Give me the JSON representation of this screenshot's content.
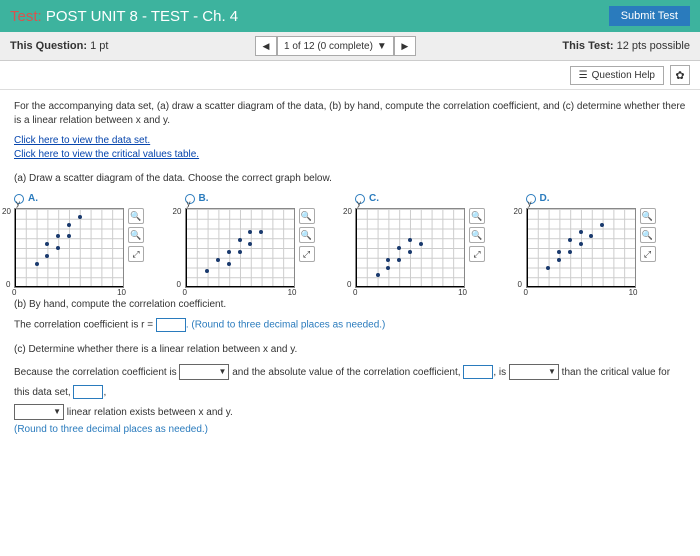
{
  "header": {
    "prefix": "Test:",
    "title": "POST UNIT 8 - TEST - Ch. 4",
    "submit": "Submit Test"
  },
  "bar": {
    "thisQuestion": "This Question:",
    "pts": "1 pt",
    "nav": "1 of 12 (0 complete)",
    "thisTest": "This Test:",
    "testPts": "12 pts possible"
  },
  "toolbar": {
    "help": "Question Help"
  },
  "q": {
    "intro": "For the accompanying data set, (a) draw a scatter diagram of the data, (b) by hand, compute the correlation coefficient, and (c) determine whether there is a linear relation between x and y.",
    "link1": "Click here to view the data set.",
    "link2": "Click here to view the critical values table.",
    "a": "(a) Draw a scatter diagram of the data. Choose the correct graph below.",
    "b": "(b) By hand, compute the correlation coefficient.",
    "bline": "The correlation coefficient is r = ",
    "bround": ". (Round to three decimal places as needed.)",
    "c": "(c) Determine whether there is a linear relation between x and y.",
    "cline1": "Because the correlation coefficient is ",
    "cline2": " and the absolute value of the correlation coefficient, ",
    "cline3": ", is ",
    "cline4": " than the critical value for this data set, ",
    "cline5": ",",
    "cline6": " linear relation exists between x and y.",
    "cround": "(Round to three decimal places as needed.)"
  },
  "choices": {
    "labels": [
      "A.",
      "B.",
      "C.",
      "D."
    ],
    "axis": {
      "x0": "0",
      "x1": "10",
      "y0": "0",
      "y1": "20",
      "ylabel": "y"
    },
    "graphs": [
      {
        "pts": [
          [
            2,
            6
          ],
          [
            3,
            11
          ],
          [
            3,
            8
          ],
          [
            4,
            13
          ],
          [
            4,
            10
          ],
          [
            5,
            16
          ],
          [
            5,
            13
          ],
          [
            6,
            18
          ]
        ]
      },
      {
        "pts": [
          [
            2,
            4
          ],
          [
            3,
            7
          ],
          [
            4,
            9
          ],
          [
            4,
            6
          ],
          [
            5,
            12
          ],
          [
            5,
            9
          ],
          [
            6,
            14
          ],
          [
            6,
            11
          ],
          [
            7,
            14
          ]
        ]
      },
      {
        "pts": [
          [
            2,
            3
          ],
          [
            3,
            7
          ],
          [
            3,
            5
          ],
          [
            4,
            10
          ],
          [
            4,
            7
          ],
          [
            5,
            12
          ],
          [
            5,
            9
          ],
          [
            6,
            11
          ]
        ]
      },
      {
        "pts": [
          [
            2,
            5
          ],
          [
            3,
            9
          ],
          [
            3,
            7
          ],
          [
            4,
            12
          ],
          [
            4,
            9
          ],
          [
            5,
            14
          ],
          [
            5,
            11
          ],
          [
            6,
            13
          ],
          [
            7,
            16
          ]
        ]
      }
    ]
  }
}
